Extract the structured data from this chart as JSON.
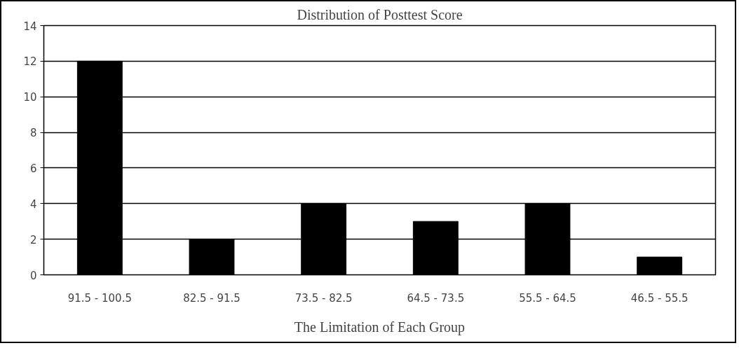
{
  "chart_data": {
    "type": "bar",
    "title": "Distribution of Posttest Score",
    "xlabel": "The Limitation of Each Group",
    "categories": [
      "91.5 - 100.5",
      "82.5 - 91.5",
      "73.5 - 82.5",
      "64.5 - 73.5",
      "55.5 - 64.5",
      "46.5 - 55.5"
    ],
    "values": [
      12,
      2,
      4,
      3,
      4,
      1
    ],
    "color": "#000000",
    "ylim": [
      0,
      14
    ],
    "yticks": [
      0,
      2,
      4,
      6,
      8,
      10,
      12,
      14
    ],
    "grid": "y"
  }
}
